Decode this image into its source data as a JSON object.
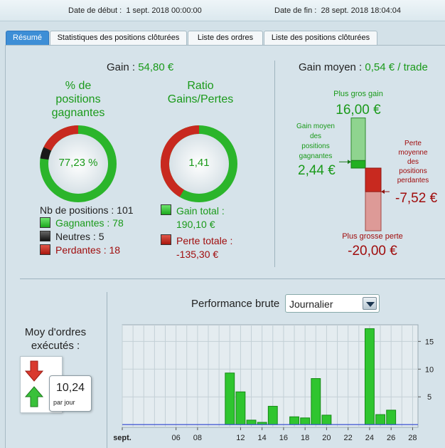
{
  "header": {
    "start_label": "Date de début :",
    "start_value": "1 sept. 2018 00:00:00",
    "end_label": "Date de fin :",
    "end_value": "28 sept. 2018 18:04:04"
  },
  "tabs": [
    {
      "label": "Résumé",
      "active": true
    },
    {
      "label": "Statistiques des positions clôturées",
      "active": false
    },
    {
      "label": "Liste des ordres",
      "active": false
    },
    {
      "label": "Liste des positions clôturées",
      "active": false
    }
  ],
  "summary": {
    "gain_label": "Gain :",
    "gain_value": "54,80 €",
    "winning_pct": {
      "title_line1": "% de",
      "title_line2": "positions",
      "title_line3": "gagnantes",
      "value": "77,23 %",
      "fractions": {
        "winning": 0.7723,
        "neutral": 0.0495,
        "losing": 0.1782
      }
    },
    "ratio": {
      "title_line1": "Ratio",
      "title_line2": "Gains/Pertes",
      "value": "1,41",
      "fractions": {
        "gains": 0.5842,
        "losses": 0.4158
      }
    },
    "positions": {
      "count_label": "Nb de positions : 101",
      "winning_label": "Gagnantes : 78",
      "neutral_label": "Neutres : 5",
      "losing_label": "Perdantes : 18"
    },
    "totals": {
      "gain_label": "Gain total :",
      "gain_value": "190,10 €",
      "loss_label": "Perte totale :",
      "loss_value": "-135,30 €"
    }
  },
  "average": {
    "title_label": "Gain moyen :",
    "title_value": "0,54 € / trade",
    "biggest_gain_label": "Plus gros gain",
    "biggest_gain_value": "16,00 €",
    "avg_winning_l1": "Gain moyen",
    "avg_winning_l2": "des",
    "avg_winning_l3": "positions",
    "avg_winning_l4": "gagnantes",
    "avg_winning_value": "2,44 €",
    "avg_losing_l1": "Perte",
    "avg_losing_l2": "moyenne",
    "avg_losing_l3": "des",
    "avg_losing_l4": "positions",
    "avg_losing_l5": "perdantes",
    "avg_losing_value": "-7,52 €",
    "biggest_loss_label": "Plus grosse perte",
    "biggest_loss_value": "-20,00 €",
    "scale": {
      "max_gain": 16.0,
      "avg_gain": 2.44,
      "avg_loss": -7.52,
      "max_loss": -20.0
    }
  },
  "orders": {
    "title_line1": "Moy d'ordres",
    "title_line2": "exécutés :",
    "value": "10,24",
    "unit": "par jour"
  },
  "performance": {
    "title": "Performance brute",
    "period_selected": "Journalier"
  },
  "chart_data": {
    "type": "bar",
    "title": "Performance brute",
    "x": [
      11,
      12,
      13,
      14,
      15,
      17,
      18,
      19,
      20,
      24,
      25,
      26,
      27
    ],
    "values": [
      9.3,
      5.9,
      0.8,
      0.4,
      3.3,
      1.4,
      1.2,
      8.3,
      1.7,
      17.3,
      1.8,
      2.6,
      0
    ],
    "xlim": [
      1,
      28.5
    ],
    "x_ticks": [
      {
        "label": "sept.",
        "x": 1
      },
      {
        "label": "06",
        "x": 6
      },
      {
        "label": "08",
        "x": 8
      },
      {
        "label": "12",
        "x": 12
      },
      {
        "label": "14",
        "x": 14
      },
      {
        "label": "16",
        "x": 16
      },
      {
        "label": "18",
        "x": 18
      },
      {
        "label": "20",
        "x": 20
      },
      {
        "label": "22",
        "x": 22
      },
      {
        "label": "24",
        "x": 24
      },
      {
        "label": "26",
        "x": 26
      },
      {
        "label": "28",
        "x": 28
      }
    ],
    "ylim": [
      -0.5,
      18
    ],
    "y_ticks": [
      5,
      10,
      15
    ],
    "grid": true
  }
}
